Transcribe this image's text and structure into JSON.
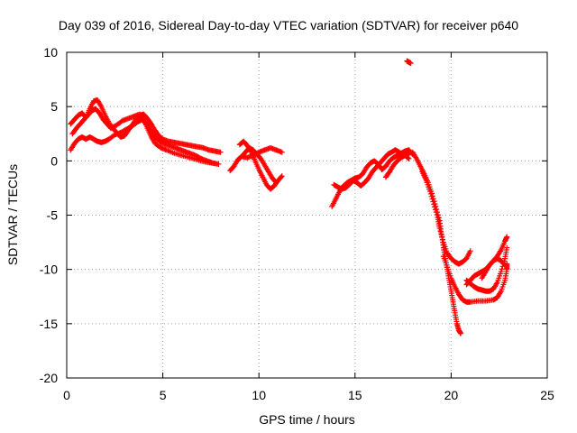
{
  "chart_data": {
    "type": "scatter",
    "title": "Day 039 of 2016, Sidereal Day-to-day VTEC variation (SDTVAR) for receiver p640",
    "xlabel": "GPS time / hours",
    "ylabel": "SDTVAR / TECUs",
    "xlim": [
      0,
      25
    ],
    "ylim": [
      -20,
      10
    ],
    "xticks": [
      "0",
      "5",
      "10",
      "15",
      "20",
      "25"
    ],
    "yticks": [
      "10",
      "5",
      "0",
      "-5",
      "-10",
      "-15",
      "-20"
    ],
    "grid": true,
    "marker": "+",
    "series_color": "#ff0000",
    "segments": [
      [
        [
          0.2,
          1.0
        ],
        [
          0.4,
          1.6
        ],
        [
          0.6,
          2.0
        ],
        [
          0.8,
          2.2
        ],
        [
          1.0,
          2.0
        ],
        [
          1.2,
          2.2
        ],
        [
          1.4,
          2.0
        ],
        [
          1.6,
          1.8
        ],
        [
          1.8,
          1.7
        ],
        [
          2.0,
          1.8
        ],
        [
          2.2,
          2.0
        ],
        [
          2.5,
          2.4
        ],
        [
          2.8,
          2.6
        ],
        [
          3.1,
          2.9
        ],
        [
          3.4,
          3.2
        ],
        [
          3.7,
          3.6
        ],
        [
          3.9,
          3.8
        ],
        [
          4.1,
          3.5
        ],
        [
          4.3,
          3.0
        ],
        [
          4.5,
          2.4
        ],
        [
          4.7,
          2.0
        ],
        [
          4.9,
          1.7
        ],
        [
          5.2,
          1.5
        ],
        [
          5.5,
          1.3
        ],
        [
          5.8,
          1.1
        ],
        [
          6.1,
          0.9
        ],
        [
          6.4,
          0.7
        ],
        [
          6.7,
          0.5
        ],
        [
          7.0,
          0.2
        ],
        [
          7.3,
          0.0
        ],
        [
          7.6,
          -0.2
        ],
        [
          7.9,
          -0.3
        ]
      ],
      [
        [
          0.2,
          3.4
        ],
        [
          0.4,
          3.8
        ],
        [
          0.6,
          4.2
        ],
        [
          0.8,
          4.4
        ],
        [
          1.0,
          4.0
        ],
        [
          1.2,
          4.8
        ],
        [
          1.4,
          5.5
        ],
        [
          1.6,
          5.6
        ],
        [
          1.8,
          5.0
        ],
        [
          2.0,
          4.2
        ],
        [
          2.2,
          3.5
        ],
        [
          2.4,
          3.0
        ],
        [
          2.6,
          2.6
        ],
        [
          2.8,
          2.2
        ],
        [
          3.0,
          2.3
        ],
        [
          3.2,
          2.8
        ],
        [
          3.4,
          3.3
        ],
        [
          3.6,
          3.8
        ],
        [
          3.8,
          4.2
        ],
        [
          4.0,
          4.3
        ],
        [
          4.2,
          3.9
        ],
        [
          4.4,
          3.4
        ],
        [
          4.6,
          2.8
        ],
        [
          4.8,
          2.3
        ],
        [
          5.0,
          2.0
        ],
        [
          5.3,
          1.8
        ],
        [
          5.6,
          1.7
        ],
        [
          5.9,
          1.6
        ],
        [
          6.2,
          1.5
        ],
        [
          6.5,
          1.4
        ],
        [
          6.8,
          1.3
        ],
        [
          7.1,
          1.2
        ],
        [
          7.4,
          1.0
        ],
        [
          7.7,
          0.9
        ],
        [
          8.0,
          0.8
        ]
      ],
      [
        [
          0.3,
          2.5
        ],
        [
          0.5,
          3.0
        ],
        [
          0.7,
          3.4
        ],
        [
          0.9,
          3.8
        ],
        [
          1.1,
          4.2
        ],
        [
          1.3,
          4.6
        ],
        [
          1.5,
          4.8
        ],
        [
          1.7,
          4.4
        ],
        [
          1.9,
          3.8
        ],
        [
          2.1,
          3.4
        ],
        [
          2.3,
          3.0
        ],
        [
          2.6,
          3.3
        ],
        [
          2.9,
          3.7
        ],
        [
          3.2,
          3.9
        ],
        [
          3.5,
          4.1
        ],
        [
          3.8,
          4.3
        ],
        [
          4.0,
          3.8
        ],
        [
          4.2,
          3.0
        ],
        [
          4.4,
          2.2
        ],
        [
          4.6,
          1.6
        ],
        [
          4.9,
          1.2
        ],
        [
          5.2,
          1.0
        ],
        [
          5.6,
          0.7
        ],
        [
          6.0,
          0.5
        ],
        [
          6.4,
          0.3
        ],
        [
          6.8,
          0.1
        ],
        [
          7.2,
          -0.1
        ],
        [
          7.6,
          -0.2
        ]
      ],
      [
        [
          8.5,
          -0.9
        ],
        [
          8.7,
          -0.5
        ],
        [
          8.9,
          0.1
        ],
        [
          9.1,
          0.4
        ],
        [
          9.3,
          0.8
        ],
        [
          9.5,
          1.2
        ],
        [
          9.7,
          1.0
        ],
        [
          9.9,
          0.6
        ],
        [
          10.1,
          0.2
        ],
        [
          10.3,
          -0.4
        ],
        [
          10.5,
          -1.0
        ],
        [
          10.7,
          -1.6
        ],
        [
          10.9,
          -2.0
        ]
      ],
      [
        [
          9.0,
          1.5
        ],
        [
          9.2,
          1.8
        ],
        [
          9.4,
          1.4
        ],
        [
          9.6,
          0.8
        ],
        [
          9.8,
          0.0
        ],
        [
          10.0,
          -0.8
        ],
        [
          10.2,
          -1.5
        ],
        [
          10.4,
          -2.2
        ],
        [
          10.6,
          -2.6
        ],
        [
          10.8,
          -2.3
        ],
        [
          11.0,
          -1.8
        ],
        [
          11.2,
          -1.4
        ]
      ],
      [
        [
          9.1,
          0.4
        ],
        [
          9.4,
          0.3
        ],
        [
          9.7,
          0.5
        ],
        [
          10.0,
          0.8
        ],
        [
          10.3,
          1.0
        ],
        [
          10.6,
          1.2
        ],
        [
          10.9,
          1.0
        ],
        [
          11.2,
          0.8
        ]
      ],
      [
        [
          13.8,
          -4.2
        ],
        [
          14.0,
          -3.5
        ],
        [
          14.2,
          -2.8
        ],
        [
          14.4,
          -2.3
        ],
        [
          14.6,
          -2.0
        ],
        [
          14.8,
          -1.8
        ],
        [
          15.0,
          -1.6
        ],
        [
          15.2,
          -1.5
        ],
        [
          15.4,
          -1.2
        ],
        [
          15.6,
          -0.6
        ],
        [
          15.8,
          -0.2
        ],
        [
          16.0,
          0.0
        ],
        [
          16.2,
          -0.3
        ],
        [
          16.4,
          -0.8
        ],
        [
          16.6,
          -0.5
        ],
        [
          16.8,
          0.0
        ],
        [
          17.0,
          0.3
        ],
        [
          17.2,
          0.5
        ],
        [
          17.4,
          0.7
        ],
        [
          17.6,
          0.9
        ],
        [
          17.8,
          1.0
        ],
        [
          18.0,
          0.6
        ]
      ],
      [
        [
          13.9,
          -2.2
        ],
        [
          14.1,
          -2.4
        ],
        [
          14.3,
          -2.6
        ],
        [
          14.5,
          -2.5
        ],
        [
          14.7,
          -2.2
        ],
        [
          14.9,
          -1.8
        ],
        [
          15.1,
          -2.0
        ],
        [
          15.3,
          -2.3
        ],
        [
          15.5,
          -2.0
        ],
        [
          15.7,
          -1.6
        ],
        [
          15.9,
          -1.0
        ],
        [
          16.1,
          -0.6
        ],
        [
          16.3,
          -0.2
        ],
        [
          16.5,
          0.2
        ],
        [
          16.7,
          0.6
        ],
        [
          16.9,
          0.8
        ],
        [
          17.1,
          1.0
        ],
        [
          17.3,
          0.8
        ],
        [
          17.5,
          0.5
        ],
        [
          17.7,
          0.6
        ],
        [
          17.9,
          0.8
        ]
      ],
      [
        [
          16.6,
          -1.5
        ],
        [
          16.8,
          -1.0
        ],
        [
          17.0,
          -0.4
        ],
        [
          17.2,
          0.0
        ],
        [
          17.4,
          0.3
        ],
        [
          17.6,
          0.5
        ],
        [
          17.8,
          0.2
        ]
      ],
      [
        [
          17.7,
          9.2
        ],
        [
          17.8,
          9.1
        ],
        [
          17.9,
          9.0
        ]
      ],
      [
        [
          18.0,
          0.8
        ],
        [
          18.2,
          0.2
        ],
        [
          18.4,
          -0.5
        ],
        [
          18.6,
          -1.2
        ],
        [
          18.8,
          -2.0
        ],
        [
          19.0,
          -3.0
        ],
        [
          19.2,
          -4.2
        ],
        [
          19.4,
          -5.5
        ],
        [
          19.5,
          -6.8
        ],
        [
          19.6,
          -8.0
        ],
        [
          19.7,
          -9.0
        ],
        [
          19.8,
          -10.0
        ],
        [
          19.9,
          -11.0
        ],
        [
          20.0,
          -12.0
        ],
        [
          20.1,
          -13.0
        ],
        [
          20.2,
          -14.0
        ],
        [
          20.3,
          -15.0
        ],
        [
          20.4,
          -15.6
        ],
        [
          20.5,
          -15.9
        ]
      ],
      [
        [
          18.5,
          -1.0
        ],
        [
          18.7,
          -1.8
        ],
        [
          18.9,
          -2.8
        ],
        [
          19.1,
          -4.0
        ],
        [
          19.3,
          -5.2
        ],
        [
          19.4,
          -6.2
        ],
        [
          19.6,
          -7.5
        ],
        [
          19.8,
          -8.5
        ],
        [
          20.0,
          -9.0
        ],
        [
          20.2,
          -9.3
        ],
        [
          20.4,
          -9.5
        ],
        [
          20.6,
          -9.3
        ],
        [
          20.8,
          -9.0
        ],
        [
          21.0,
          -8.3
        ]
      ],
      [
        [
          19.6,
          -8.8
        ],
        [
          19.8,
          -9.8
        ],
        [
          20.0,
          -10.8
        ],
        [
          20.2,
          -11.6
        ],
        [
          20.4,
          -12.3
        ],
        [
          20.6,
          -12.8
        ],
        [
          20.8,
          -13.0
        ],
        [
          21.0,
          -13.0
        ],
        [
          21.4,
          -12.9
        ],
        [
          21.8,
          -12.9
        ],
        [
          22.2,
          -12.8
        ],
        [
          22.4,
          -12.6
        ],
        [
          22.6,
          -12.0
        ],
        [
          22.8,
          -11.0
        ],
        [
          22.9,
          -10.0
        ],
        [
          22.9,
          -9.5
        ]
      ],
      [
        [
          20.8,
          -11.4
        ],
        [
          21.0,
          -11.0
        ],
        [
          21.2,
          -10.6
        ],
        [
          21.4,
          -10.4
        ],
        [
          21.6,
          -10.2
        ],
        [
          21.8,
          -10.0
        ],
        [
          22.0,
          -9.6
        ],
        [
          22.2,
          -9.2
        ],
        [
          22.4,
          -8.8
        ],
        [
          22.6,
          -8.2
        ],
        [
          22.8,
          -7.4
        ],
        [
          22.9,
          -7.0
        ]
      ],
      [
        [
          20.8,
          -11.0
        ],
        [
          21.0,
          -11.3
        ],
        [
          21.2,
          -11.6
        ],
        [
          21.4,
          -11.8
        ],
        [
          21.6,
          -11.9
        ],
        [
          21.8,
          -12.0
        ],
        [
          22.0,
          -12.0
        ],
        [
          22.2,
          -11.8
        ],
        [
          22.4,
          -11.2
        ],
        [
          22.6,
          -10.2
        ],
        [
          22.8,
          -9.0
        ],
        [
          22.9,
          -8.0
        ]
      ],
      [
        [
          21.6,
          -10.8
        ],
        [
          21.8,
          -10.2
        ],
        [
          22.0,
          -9.6
        ],
        [
          22.2,
          -9.2
        ],
        [
          22.4,
          -9.0
        ],
        [
          22.6,
          -9.2
        ],
        [
          22.8,
          -9.6
        ]
      ]
    ]
  }
}
